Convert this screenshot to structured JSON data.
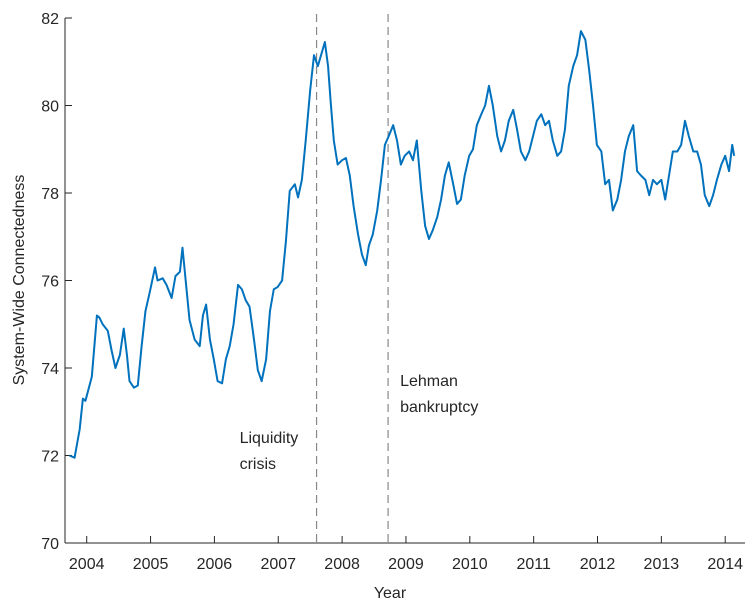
{
  "chart_data": {
    "type": "line",
    "x_label": "Year",
    "y_label": "System-Wide Connectedness",
    "xlim": [
      2003.66,
      2014.31
    ],
    "ylim": [
      70,
      82
    ],
    "xticks": [
      2004,
      2005,
      2006,
      2007,
      2008,
      2009,
      2010,
      2011,
      2012,
      2013,
      2014
    ],
    "yticks": [
      70,
      72,
      74,
      76,
      78,
      80,
      82
    ],
    "events": [
      {
        "x": 2007.6,
        "label": [
          "Liquidity",
          "crisis"
        ]
      },
      {
        "x": 2008.72,
        "label": [
          "Lehman",
          "bankruptcy"
        ]
      }
    ],
    "series": [
      {
        "color": "#0072bd",
        "x": [
          2003.73,
          2003.81,
          2003.89,
          2003.94,
          2003.98,
          2004.08,
          2004.16,
          2004.2,
          2004.25,
          2004.33,
          2004.39,
          2004.45,
          2004.52,
          2004.58,
          2004.63,
          2004.67,
          2004.74,
          2004.8,
          2004.86,
          2004.92,
          2004.99,
          2005.07,
          2005.11,
          2005.19,
          2005.25,
          2005.33,
          2005.39,
          2005.46,
          2005.5,
          2005.55,
          2005.61,
          2005.69,
          2005.77,
          2005.82,
          2005.87,
          2005.93,
          2005.99,
          2006.05,
          2006.12,
          2006.18,
          2006.24,
          2006.3,
          2006.37,
          2006.43,
          2006.49,
          2006.55,
          2006.62,
          2006.68,
          2006.74,
          2006.81,
          2006.87,
          2006.93,
          2006.99,
          2007.06,
          2007.12,
          2007.18,
          2007.26,
          2007.31,
          2007.37,
          2007.43,
          2007.5,
          2007.56,
          2007.62,
          2007.68,
          2007.73,
          2007.78,
          2007.82,
          2007.87,
          2007.93,
          2008.0,
          2008.06,
          2008.12,
          2008.18,
          2008.25,
          2008.31,
          2008.37,
          2008.42,
          2008.48,
          2008.55,
          2008.61,
          2008.67,
          2008.73,
          2008.8,
          2008.86,
          2008.92,
          2008.98,
          2009.05,
          2009.11,
          2009.17,
          2009.24,
          2009.3,
          2009.36,
          2009.42,
          2009.49,
          2009.55,
          2009.61,
          2009.67,
          2009.74,
          2009.8,
          2009.86,
          2009.92,
          2009.99,
          2010.05,
          2010.11,
          2010.18,
          2010.24,
          2010.3,
          2010.36,
          2010.43,
          2010.49,
          2010.55,
          2010.61,
          2010.68,
          2010.74,
          2010.8,
          2010.87,
          2010.93,
          2010.99,
          2011.05,
          2011.12,
          2011.18,
          2011.24,
          2011.3,
          2011.37,
          2011.43,
          2011.49,
          2011.55,
          2011.62,
          2011.68,
          2011.74,
          2011.81,
          2011.87,
          2011.93,
          2011.99,
          2012.06,
          2012.12,
          2012.18,
          2012.24,
          2012.31,
          2012.37,
          2012.43,
          2012.49,
          2012.56,
          2012.62,
          2012.68,
          2012.75,
          2012.81,
          2012.87,
          2012.93,
          2013.0,
          2013.06,
          2013.12,
          2013.18,
          2013.25,
          2013.31,
          2013.37,
          2013.43,
          2013.5,
          2013.56,
          2013.62,
          2013.68,
          2013.75,
          2013.81,
          2013.87,
          2013.94,
          2014.0,
          2014.06,
          2014.11,
          2014.14
        ],
        "values": [
          72.0,
          71.95,
          72.6,
          73.3,
          73.25,
          73.8,
          75.2,
          75.15,
          75.0,
          74.85,
          74.4,
          74.0,
          74.3,
          74.9,
          74.3,
          73.7,
          73.55,
          73.6,
          74.5,
          75.3,
          75.75,
          76.3,
          76.0,
          76.05,
          75.9,
          75.6,
          76.1,
          76.2,
          76.75,
          76.0,
          75.1,
          74.65,
          74.5,
          75.2,
          75.45,
          74.65,
          74.2,
          73.7,
          73.65,
          74.2,
          74.5,
          75.0,
          75.9,
          75.8,
          75.55,
          75.4,
          74.65,
          73.95,
          73.7,
          74.2,
          75.3,
          75.8,
          75.85,
          76.0,
          76.9,
          78.05,
          78.2,
          77.9,
          78.3,
          79.2,
          80.35,
          81.15,
          80.9,
          81.2,
          81.45,
          80.9,
          80.1,
          79.2,
          78.65,
          78.75,
          78.8,
          78.4,
          77.7,
          77.05,
          76.6,
          76.35,
          76.8,
          77.05,
          77.6,
          78.3,
          79.1,
          79.3,
          79.55,
          79.2,
          78.65,
          78.85,
          78.95,
          78.75,
          79.2,
          78.05,
          77.25,
          76.95,
          77.15,
          77.45,
          77.85,
          78.4,
          78.7,
          78.2,
          77.75,
          77.85,
          78.4,
          78.85,
          79.0,
          79.55,
          79.8,
          80.0,
          80.45,
          80.0,
          79.3,
          78.95,
          79.2,
          79.65,
          79.9,
          79.45,
          78.95,
          78.75,
          78.95,
          79.3,
          79.65,
          79.8,
          79.55,
          79.65,
          79.2,
          78.85,
          78.95,
          79.45,
          80.45,
          80.9,
          81.15,
          81.7,
          81.5,
          80.8,
          80.0,
          79.1,
          78.95,
          78.2,
          78.3,
          77.6,
          77.85,
          78.3,
          78.95,
          79.3,
          79.55,
          78.5,
          78.4,
          78.3,
          77.95,
          78.3,
          78.2,
          78.3,
          77.85,
          78.4,
          78.95,
          78.95,
          79.1,
          79.65,
          79.3,
          78.95,
          78.95,
          78.65,
          77.95,
          77.7,
          77.95,
          78.3,
          78.65,
          78.85,
          78.5,
          79.1,
          78.85
        ]
      }
    ]
  }
}
